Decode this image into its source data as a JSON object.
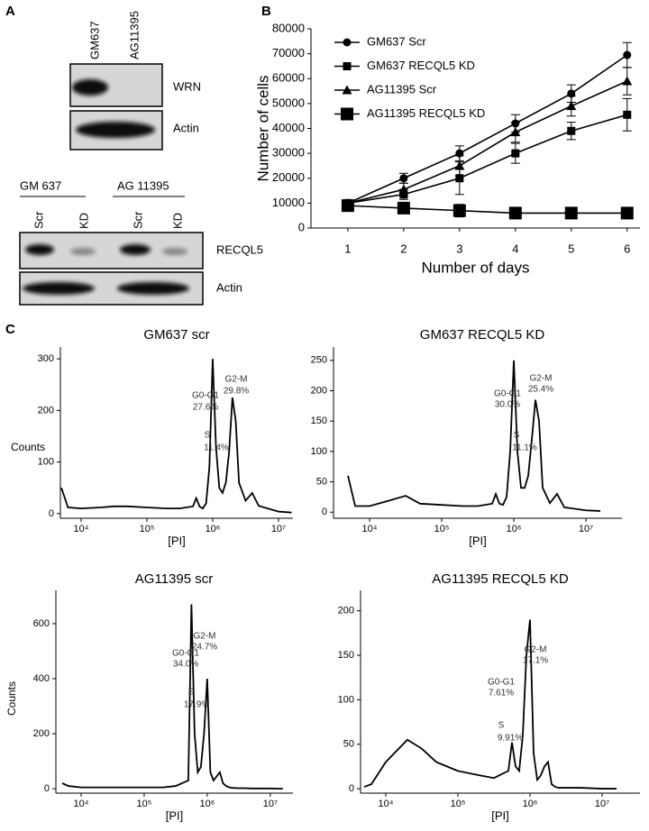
{
  "panel_a": {
    "label": "A",
    "blot1": {
      "lanes": [
        "GM637",
        "AG11395"
      ],
      "rows": [
        "WRN",
        "Actin"
      ]
    },
    "blot2": {
      "groups": [
        "GM 637",
        "AG 11395"
      ],
      "lanes": [
        "Scr",
        "KD",
        "Scr",
        "KD"
      ],
      "rows": [
        "RECQL5",
        "Actin"
      ]
    }
  },
  "panel_b_label": "B",
  "panel_c_label": "C",
  "chart_data": [
    {
      "type": "line",
      "xlabel": "Number of days",
      "ylabel": "Number of cells",
      "x": [
        1,
        2,
        3,
        4,
        5,
        6
      ],
      "xlim": [
        0.34,
        6.23
      ],
      "xticks": [
        1,
        2,
        3,
        4,
        5,
        6
      ],
      "ylim": [
        0,
        80000
      ],
      "yticks": [
        0,
        10000,
        20000,
        30000,
        40000,
        50000,
        60000,
        70000,
        80000
      ],
      "legend": "upper left",
      "series": [
        {
          "name": "GM637 Scr",
          "color": "#000000",
          "marker": "circle",
          "values": [
            10000,
            20000,
            30000,
            42000,
            54000,
            69500
          ],
          "errors": [
            0,
            2000,
            3000,
            3500,
            3500,
            5000
          ]
        },
        {
          "name": "GM637 RECQL5 KD",
          "color": "#000000",
          "marker": "square",
          "values": [
            10000,
            13500,
            20000,
            30000,
            39000,
            45500
          ],
          "errors": [
            0,
            2000,
            6500,
            4000,
            3500,
            6500
          ]
        },
        {
          "name": "AG11395 Scr",
          "color": "#000000",
          "marker": "triangle",
          "values": [
            10000,
            15500,
            25000,
            38500,
            49000,
            59000
          ],
          "errors": [
            0,
            2500,
            4000,
            4000,
            4000,
            5500
          ]
        },
        {
          "name": "AG11395 RECQL5 KD",
          "color": "#000000",
          "marker": "big-square",
          "values": [
            9000,
            8000,
            7000,
            6000,
            6000,
            6000
          ],
          "errors": [
            1000,
            2000,
            2500,
            2000,
            1500,
            2000
          ]
        }
      ]
    },
    {
      "type": "line",
      "title": "GM637 scr",
      "xlabel": "[PI]",
      "ylabel": "Counts",
      "xscale": "log",
      "xlim": [
        4840,
        16600000
      ],
      "xticks": [
        {
          "value": 10000,
          "label": "10⁴"
        },
        {
          "value": 100000,
          "label": "10⁵"
        },
        {
          "value": 1000000,
          "label": "10⁶"
        },
        {
          "value": 10000000,
          "label": "10⁷"
        }
      ],
      "ylim": [
        -9,
        323
      ],
      "yticks": [
        0,
        100,
        200,
        300
      ],
      "x": [
        5012,
        6310,
        10000,
        19953,
        31623,
        50119,
        100000,
        199526,
        316228,
        501187,
        562341,
        630957,
        707946,
        794328,
        891251,
        1000000,
        1122018,
        1258925,
        1412538,
        1584893,
        1778279,
        1995262,
        2238721,
        2511886,
        3162278,
        3981072,
        5011872,
        10000000,
        15848932
      ],
      "series": [
        {
          "color": "#000000",
          "values": [
            50,
            12,
            10,
            12,
            14,
            14,
            12,
            10,
            10,
            14,
            30,
            14,
            10,
            20,
            90,
            300,
            130,
            50,
            40,
            60,
            120,
            225,
            180,
            60,
            25,
            40,
            15,
            4,
            2
          ]
        }
      ],
      "annotations": [
        "G2-M",
        "29.8%",
        "G0-G1",
        "27.6%",
        "S",
        "11.4%"
      ]
    },
    {
      "type": "line",
      "title": "GM637 RECQL5 KD",
      "xlabel": "[PI]",
      "xscale": "log",
      "xlim": [
        3160,
        31600000
      ],
      "xticks": [
        {
          "value": 10000,
          "label": "10⁴"
        },
        {
          "value": 100000,
          "label": "10⁵"
        },
        {
          "value": 1000000,
          "label": "10⁶"
        },
        {
          "value": 10000000,
          "label": "10⁷"
        }
      ],
      "ylim": [
        -10,
        272
      ],
      "yticks": [
        0,
        50,
        100,
        150,
        200,
        250
      ],
      "x": [
        5012,
        6310,
        10000,
        19953,
        31623,
        50119,
        100000,
        199526,
        316228,
        501187,
        562341,
        630957,
        707946,
        794328,
        891251,
        1000000,
        1122018,
        1258925,
        1412538,
        1584893,
        1778279,
        1995262,
        2238721,
        2511886,
        3162278,
        3981072,
        5011872,
        10000000,
        15848932
      ],
      "series": [
        {
          "color": "#000000",
          "values": [
            60,
            10,
            10,
            20,
            27,
            14,
            12,
            10,
            10,
            14,
            30,
            14,
            12,
            25,
            100,
            250,
            100,
            40,
            40,
            60,
            120,
            185,
            150,
            40,
            15,
            30,
            8,
            3,
            2
          ]
        }
      ],
      "annotations": [
        "G2-M",
        "25.4%",
        "G0-G1",
        "30.0%",
        "S",
        "11.1%"
      ]
    },
    {
      "type": "line",
      "title": "AG11395 scr",
      "xlabel": "[PI]",
      "ylabel": "Counts",
      "xscale": "log",
      "xlim": [
        3980,
        22900000
      ],
      "xticks": [
        {
          "value": 10000,
          "label": "10⁴"
        },
        {
          "value": 100000,
          "label": "10⁵"
        },
        {
          "value": 1000000,
          "label": "10⁶"
        },
        {
          "value": 10000000,
          "label": "10⁷"
        }
      ],
      "ylim": [
        -16,
        721
      ],
      "yticks": [
        0,
        200,
        400,
        600
      ],
      "x": [
        5012,
        6310,
        10000,
        19953,
        31623,
        50119,
        100000,
        199526,
        316228,
        501187,
        562341,
        630957,
        707946,
        794328,
        891251,
        1000000,
        1122018,
        1258925,
        1412538,
        1584893,
        1778279,
        1995262,
        2238721,
        2511886,
        3162278,
        3981072,
        5011872,
        10000000,
        15848932
      ],
      "series": [
        {
          "color": "#000000",
          "values": [
            20,
            10,
            5,
            5,
            5,
            5,
            5,
            5,
            10,
            30,
            670,
            200,
            60,
            80,
            200,
            400,
            60,
            30,
            45,
            60,
            20,
            10,
            5,
            3,
            2,
            2,
            1,
            1,
            0
          ]
        }
      ],
      "annotations": [
        "G2-M",
        "24.7%",
        "G0-G1",
        "34.0%",
        "S",
        "17.9%"
      ]
    },
    {
      "type": "line",
      "title": "AG11395 RECQL5 KD",
      "xlabel": "[PI]",
      "xscale": "log",
      "xlim": [
        4470,
        33500000
      ],
      "xticks": [
        {
          "value": 10000,
          "label": "10⁴"
        },
        {
          "value": 100000,
          "label": "10⁵"
        },
        {
          "value": 1000000,
          "label": "10⁶"
        },
        {
          "value": 10000000,
          "label": "10⁷"
        }
      ],
      "ylim": [
        -5,
        223
      ],
      "yticks": [
        0,
        50,
        100,
        150,
        200
      ],
      "x": [
        5012,
        6310,
        10000,
        19953,
        31623,
        50119,
        100000,
        199526,
        316228,
        501187,
        562341,
        630957,
        707946,
        794328,
        891251,
        1000000,
        1122018,
        1258925,
        1412538,
        1584893,
        1778279,
        1995262,
        2238721,
        2511886,
        3162278,
        3981072,
        5011872,
        10000000,
        15848932
      ],
      "series": [
        {
          "color": "#000000",
          "values": [
            2,
            5,
            30,
            55,
            45,
            30,
            20,
            15,
            12,
            20,
            52,
            25,
            20,
            60,
            150,
            190,
            40,
            10,
            15,
            25,
            30,
            5,
            2,
            1,
            1,
            1,
            1,
            0,
            0
          ]
        }
      ],
      "annotations": [
        "G2-M",
        "17.1%",
        "G0-G1",
        "7.61%",
        "S",
        "9.91%"
      ]
    }
  ]
}
